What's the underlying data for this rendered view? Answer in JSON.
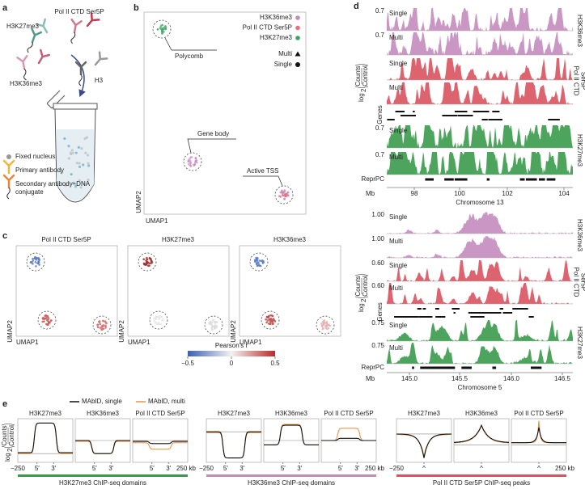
{
  "panel_a": {
    "letter": "a",
    "antibodies": [
      "Pol II CTD Ser5P",
      "H3K27me3",
      "H3K36me3",
      "H3"
    ],
    "legend": [
      "Fixed nucleus",
      "Primary antibody",
      "Secondary antibody–DNA",
      "conjugate"
    ]
  },
  "panel_b": {
    "letter": "b",
    "legend": [
      "H3K36me3",
      "Pol II CTD Ser5P",
      "H3K27me3"
    ],
    "shapes": [
      "Multi",
      "Single"
    ],
    "clusters": [
      "Polycomb",
      "Gene body",
      "Active TSS"
    ],
    "x_label": "UMAP1",
    "y_label": "UMAP2"
  },
  "panel_c": {
    "letter": "c",
    "titles": [
      "Pol II CTD Ser5P",
      "H3K27me3",
      "H3K36me3"
    ],
    "x_label": "UMAP1",
    "y_label": "UMAP2",
    "colorbar": {
      "title": "Pearson's r",
      "ticks": [
        "−0.5",
        "0",
        "0.5"
      ]
    }
  },
  "panel_d": {
    "letter": "d",
    "y_label": {
      "log": "log",
      "base": "2",
      "num": "Counts",
      "den": "Control"
    },
    "track_labels": [
      "Single",
      "Multi"
    ],
    "marks": [
      {
        "lines": [
          "H3K36me3"
        ]
      },
      {
        "lines": [
          "Pol II CTD",
          "Ser5P"
        ]
      },
      {
        "lines": [
          "H3K27me3"
        ]
      }
    ],
    "genes": "Genes",
    "reprpc": "ReprPC",
    "unit": "Mb",
    "regions": [
      {
        "chromosome": "Chromosome 13",
        "xticks": [
          "98",
          "100",
          "102",
          "104"
        ],
        "yticks": [
          [
            "0.7",
            "0.7"
          ],
          [],
          [
            "0.7",
            "0.7"
          ]
        ]
      },
      {
        "chromosome": "Chromosome 5",
        "xticks": [
          "145.0",
          "145.5",
          "146.0",
          "146.5"
        ],
        "yticks": [
          [
            "1.00",
            "1.00"
          ],
          [
            "0.60",
            "0.60"
          ],
          [
            "0.75",
            "0.75"
          ]
        ]
      }
    ]
  },
  "panel_e": {
    "letter": "e",
    "legend": [
      "MAbID, single",
      "MAbID, multi"
    ],
    "y_label": {
      "log": "log",
      "base": "2",
      "num": "Counts",
      "den": "Control"
    },
    "start": "−250",
    "end": "250 kb",
    "groups": [
      {
        "name": "H3K27me3 ChIP-seq domains",
        "titles": [
          "H3K27me3",
          "H3K36me3",
          "Pol II CTD Ser5P"
        ],
        "inner": [
          "5′",
          "3′"
        ]
      },
      {
        "name": "H3K36me3 ChIP-seq domains",
        "titles": [
          "H3K27me3",
          "H3K36me3",
          "Pol II CTD Ser5P"
        ],
        "inner": [
          "5′",
          "3′"
        ]
      },
      {
        "name": "Pol II CTD Ser5P ChIP-seq peaks",
        "titles": [
          "H3K27me3",
          "H3K36me3",
          "Pol II CTD Ser5P"
        ],
        "inner": [
          "^"
        ]
      }
    ]
  }
}
